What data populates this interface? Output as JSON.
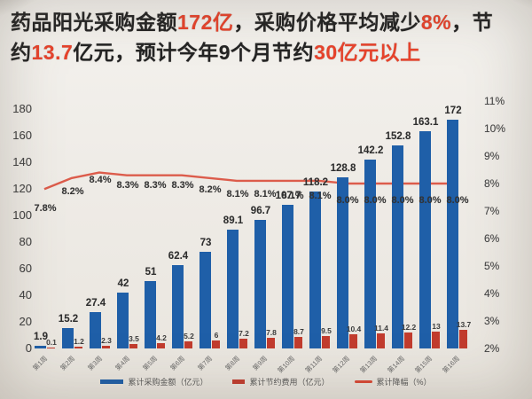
{
  "headline": {
    "text_color": "#242424",
    "accent_color": "#e8432c",
    "lines": [
      [
        {
          "t": "药品阳光采购金额",
          "c": "dark"
        },
        {
          "t": "172亿",
          "c": "red"
        },
        {
          "t": "，采购价格平均减少",
          "c": "dark"
        },
        {
          "t": "8%",
          "c": "red"
        },
        {
          "t": "，节",
          "c": "dark"
        }
      ],
      [
        {
          "t": "约",
          "c": "dark"
        },
        {
          "t": "13.7",
          "c": "red"
        },
        {
          "t": "亿元，预计今年9个月节约",
          "c": "dark"
        },
        {
          "t": "30亿元以上",
          "c": "red"
        }
      ]
    ]
  },
  "chart_data": {
    "type": "bar",
    "title": "",
    "xlabel": "",
    "ylabel": "",
    "grid": false,
    "legend_position": "bottom",
    "categories": [
      "第1周",
      "第2周",
      "第3周",
      "第4周",
      "第5周",
      "第6周",
      "第7周",
      "第8周",
      "第9周",
      "第10周",
      "第11周",
      "第12周",
      "第13周",
      "第14周",
      "第15周",
      "第16周"
    ],
    "left_axis": {
      "range": [
        0,
        180
      ],
      "ticks": [
        0,
        20,
        40,
        60,
        80,
        100,
        120,
        140,
        160,
        180
      ]
    },
    "right_axis": {
      "range": [
        2,
        11
      ],
      "ticks": [
        "2%",
        "3%",
        "4%",
        "5%",
        "6%",
        "7%",
        "8%",
        "9%",
        "10%",
        "11%"
      ]
    },
    "series": [
      {
        "name": "累计采购金额（亿元）",
        "type": "bar",
        "axis": "left",
        "color": "#1f5fa8",
        "values": [
          1.9,
          15.2,
          27.4,
          42,
          51,
          62.4,
          73,
          89.1,
          96.7,
          107.7,
          118.2,
          128.8,
          142.2,
          152.8,
          163.1,
          172
        ],
        "labels": [
          "1.9",
          "15.2",
          "27.4",
          "42",
          "51",
          "62.4",
          "73",
          "89.1",
          "96.7",
          "107.7",
          "118.2",
          "128.8",
          "142.2",
          "152.8",
          "163.1",
          "172"
        ]
      },
      {
        "name": "累计节约费用（亿元）",
        "type": "bar",
        "axis": "left",
        "color": "#c23c2e",
        "values": [
          0.1,
          1.2,
          2.3,
          3.5,
          4.2,
          5.2,
          6,
          7.2,
          7.8,
          8.7,
          9.5,
          10.4,
          11.4,
          12.2,
          13,
          13.7
        ],
        "labels": [
          "0.1",
          "1.2",
          "2.3",
          "3.5",
          "4.2",
          "5.2",
          "6",
          "7.2",
          "7.8",
          "8.7",
          "9.5",
          "10.4",
          "11.4",
          "12.2",
          "13",
          "13.7"
        ]
      },
      {
        "name": "累计降幅（%）",
        "type": "line",
        "axis": "right",
        "color": "#d94835",
        "values": [
          7.8,
          8.2,
          8.4,
          8.3,
          8.3,
          8.3,
          8.2,
          8.1,
          8.1,
          8.1,
          8.1,
          8.0,
          8.0,
          8.0,
          8.0,
          8.0
        ],
        "labels": [
          "7.8%",
          "8.2%",
          "8.4%",
          "8.3%",
          "8.3%",
          "8.3%",
          "8.2%",
          "8.1%",
          "8.1%",
          "8.1%",
          "8.1%",
          "8.0%",
          "8.0%",
          "8.0%",
          "8.0%",
          "8.0%"
        ]
      }
    ]
  }
}
